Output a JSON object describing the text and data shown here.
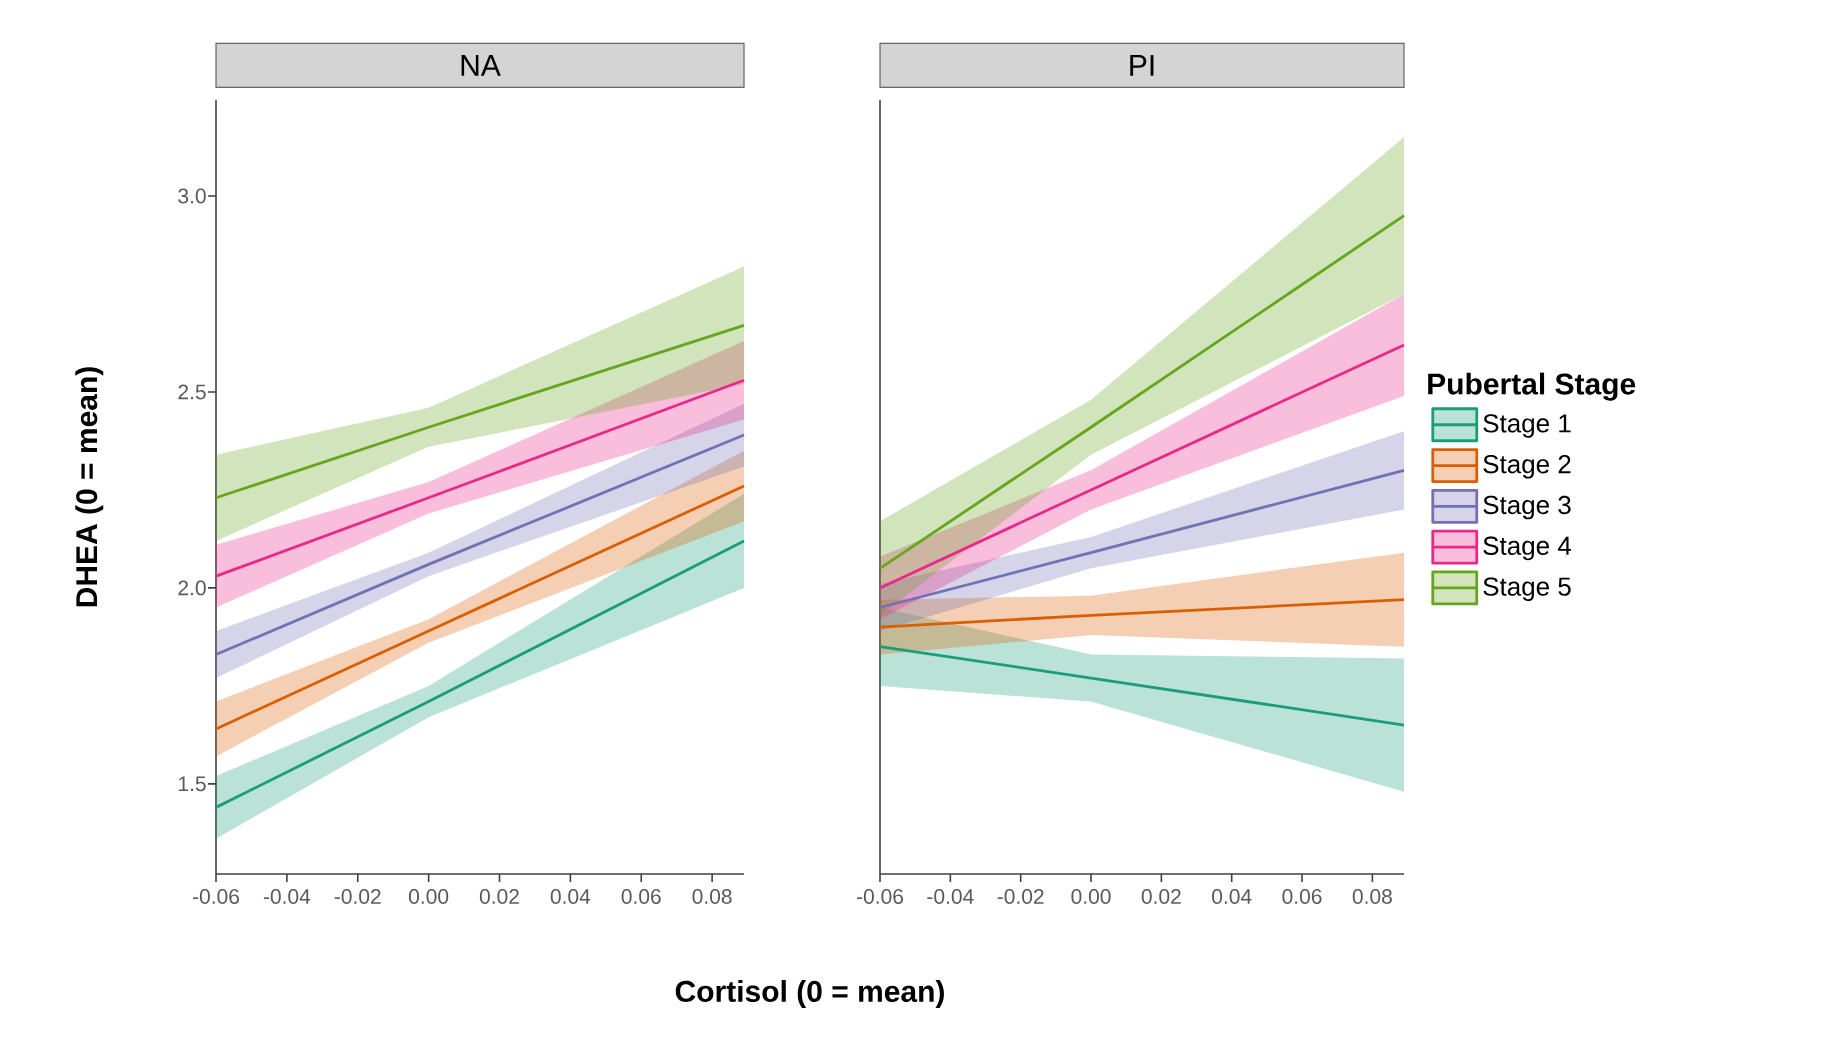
{
  "chart_data": [
    {
      "type": "line",
      "title": "NA",
      "ylabel": "DHEA (0 = mean)",
      "xlabel": "Cortisol (0 = mean)",
      "legend": false,
      "x": [
        -0.06,
        0.0,
        0.089
      ],
      "xlim": [
        -0.06,
        0.089
      ],
      "ylim": [
        1.27,
        3.245
      ],
      "xticks": [
        {
          "value": -0.06,
          "label": "-0.06"
        },
        {
          "value": -0.04,
          "label": "-0.04"
        },
        {
          "value": -0.02,
          "label": "-0.02"
        },
        {
          "value": 0.0,
          "label": "0.00"
        },
        {
          "value": 0.02,
          "label": "0.02"
        },
        {
          "value": 0.04,
          "label": "0.04"
        },
        {
          "value": 0.06,
          "label": "0.06"
        },
        {
          "value": 0.08,
          "label": "0.08"
        }
      ],
      "yticks": [
        {
          "value": 1.5,
          "label": "1.5"
        },
        {
          "value": 2.0,
          "label": "2.0"
        },
        {
          "value": 2.5,
          "label": "2.5"
        },
        {
          "value": 3.0,
          "label": "3.0"
        }
      ],
      "series": [
        {
          "color": "#1b9e77",
          "values": [
            1.44,
            1.71,
            2.12
          ],
          "lower": [
            1.36,
            1.67,
            2.0
          ],
          "upper": [
            1.52,
            1.75,
            2.24
          ]
        },
        {
          "color": "#d95f02",
          "values": [
            1.64,
            1.89,
            2.26
          ],
          "lower": [
            1.57,
            1.86,
            2.17
          ],
          "upper": [
            1.71,
            1.92,
            2.35
          ]
        },
        {
          "color": "#7570b3",
          "values": [
            1.83,
            2.06,
            2.39
          ],
          "lower": [
            1.77,
            2.03,
            2.31
          ],
          "upper": [
            1.89,
            2.09,
            2.47
          ]
        },
        {
          "color": "#e7298a",
          "values": [
            2.03,
            2.23,
            2.53
          ],
          "lower": [
            1.95,
            2.19,
            2.43
          ],
          "upper": [
            2.11,
            2.27,
            2.63
          ]
        },
        {
          "color": "#66a61e",
          "values": [
            2.23,
            2.41,
            2.67
          ],
          "lower": [
            2.12,
            2.36,
            2.52
          ],
          "upper": [
            2.34,
            2.46,
            2.82
          ]
        }
      ]
    },
    {
      "type": "line",
      "title": "PI",
      "legend": "right",
      "legend_title": "Pubertal Stage",
      "tick_labels": "x",
      "x": [
        -0.06,
        0.0,
        0.089
      ],
      "xlim": [
        -0.06,
        0.089
      ],
      "ylim": [
        1.27,
        3.245
      ],
      "xticks": [
        {
          "value": -0.06,
          "label": "-0.06"
        },
        {
          "value": -0.04,
          "label": "-0.04"
        },
        {
          "value": -0.02,
          "label": "-0.02"
        },
        {
          "value": 0.0,
          "label": "0.00"
        },
        {
          "value": 0.02,
          "label": "0.02"
        },
        {
          "value": 0.04,
          "label": "0.04"
        },
        {
          "value": 0.06,
          "label": "0.06"
        },
        {
          "value": 0.08,
          "label": "0.08"
        }
      ],
      "series": [
        {
          "name": "Stage 1",
          "color": "#1b9e77",
          "values": [
            1.85,
            1.77,
            1.65
          ],
          "lower": [
            1.75,
            1.71,
            1.48
          ],
          "upper": [
            1.95,
            1.83,
            1.82
          ]
        },
        {
          "name": "Stage 2",
          "color": "#d95f02",
          "values": [
            1.9,
            1.93,
            1.97
          ],
          "lower": [
            1.83,
            1.88,
            1.85
          ],
          "upper": [
            1.97,
            1.98,
            2.09
          ]
        },
        {
          "name": "Stage 3",
          "color": "#7570b3",
          "values": [
            1.95,
            2.09,
            2.3
          ],
          "lower": [
            1.89,
            2.05,
            2.2
          ],
          "upper": [
            2.01,
            2.13,
            2.4
          ]
        },
        {
          "name": "Stage 4",
          "color": "#e7298a",
          "values": [
            2.0,
            2.25,
            2.62
          ],
          "lower": [
            1.92,
            2.2,
            2.49
          ],
          "upper": [
            2.08,
            2.3,
            2.75
          ]
        },
        {
          "name": "Stage 5",
          "color": "#66a61e",
          "values": [
            2.05,
            2.41,
            2.95
          ],
          "lower": [
            1.93,
            2.34,
            2.75
          ],
          "upper": [
            2.17,
            2.48,
            3.15
          ]
        }
      ]
    }
  ]
}
